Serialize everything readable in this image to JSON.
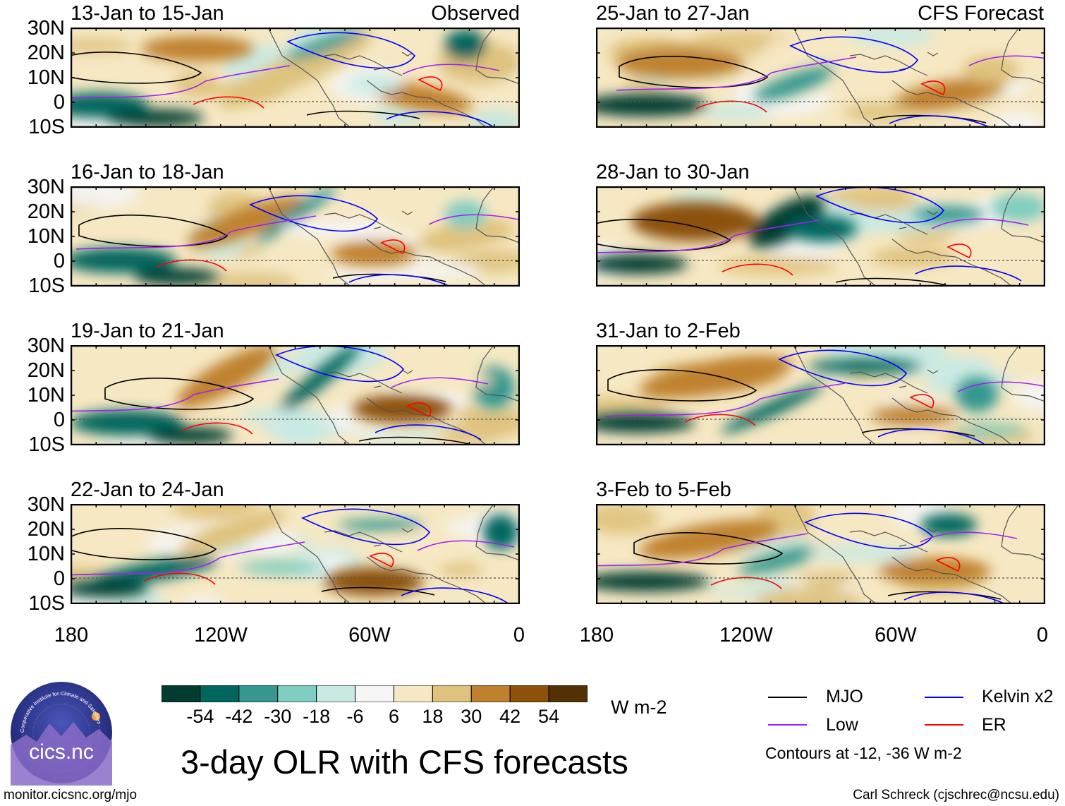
{
  "figure": {
    "title": "3-day OLR with CFS forecasts",
    "url": "monitor.cicsnc.org/mjo",
    "credit": "Carl Schreck (cjschrec@ncsu.edu)",
    "logo_text": "cics.nc",
    "logo_ring_text": "Cooperative Institute for Climate and Satellites"
  },
  "panels": [
    {
      "title": "13-Jan to 15-Jan",
      "label": "Observed"
    },
    {
      "title": "16-Jan to 18-Jan",
      "label": ""
    },
    {
      "title": "19-Jan to 21-Jan",
      "label": ""
    },
    {
      "title": "22-Jan to 24-Jan",
      "label": ""
    },
    {
      "title": "25-Jan to 27-Jan",
      "label": "CFS Forecast"
    },
    {
      "title": "28-Jan to 30-Jan",
      "label": ""
    },
    {
      "title": "31-Jan to 2-Feb",
      "label": ""
    },
    {
      "title": "3-Feb to 5-Feb",
      "label": ""
    }
  ],
  "axes": {
    "lat_labels": [
      "30N",
      "20N",
      "10N",
      "0",
      "10S"
    ],
    "lon_labels": [
      "180",
      "120W",
      "60W",
      "0"
    ]
  },
  "colorbar": {
    "ticks": [
      "-54",
      "-42",
      "-30",
      "-18",
      "-6",
      "6",
      "18",
      "30",
      "42",
      "54"
    ],
    "units": "W m-2",
    "colors": [
      "#003c30",
      "#01665e",
      "#35978f",
      "#80cdc1",
      "#c7eae5",
      "#f5f5f5",
      "#f6e8c3",
      "#dfc27d",
      "#bf812d",
      "#8c510a",
      "#543005"
    ]
  },
  "legend": {
    "items": [
      {
        "label": "MJO",
        "color": "#000000"
      },
      {
        "label": "Kelvin x2",
        "color": "#0000ff"
      },
      {
        "label": "Low",
        "color": "#a020f0"
      },
      {
        "label": "ER",
        "color": "#ff0000"
      }
    ],
    "note": "Contours at -12, -36 W m-2"
  }
}
